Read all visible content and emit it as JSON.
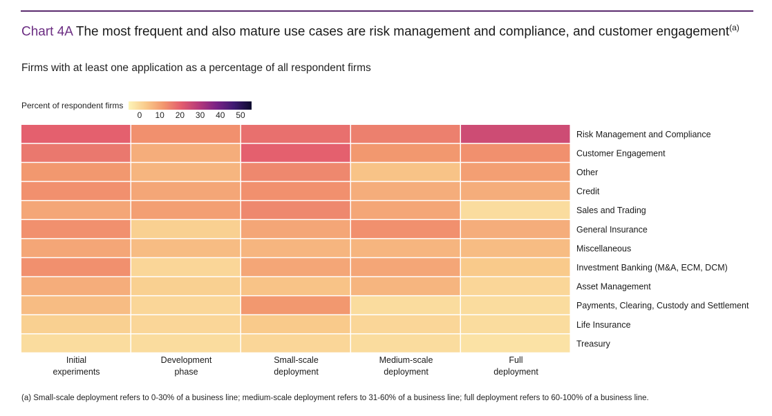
{
  "title": {
    "prefix": "Chart 4A",
    "text": "The most frequent and also mature use cases are risk management and compliance, and customer engagement",
    "note_marker": "(a)"
  },
  "subtitle": "Firms with at least one application as a percentage of all respondent firms",
  "legend": {
    "title": "Percent of respondent firms",
    "ticks": [
      0,
      10,
      20,
      30,
      40,
      50
    ],
    "min": 0,
    "max": 50,
    "colors": [
      "#fcf4b8",
      "#f9c98a",
      "#f2966e",
      "#e35d6e",
      "#b63a7a",
      "#7a2285",
      "#3e1a72",
      "#0d0a2e"
    ]
  },
  "footnote": "(a)  Small-scale deployment refers to 0-30% of a business line; medium-scale deployment refers to 31-60% of a business line; full deployment refers to 60-100% of a business line.",
  "chart_data": {
    "type": "heatmap",
    "title": "Chart 4A The most frequent and also mature use cases are risk management and compliance, and customer engagement",
    "subtitle": "Firms with at least one application as a percentage of all respondent firms",
    "colorbar_label": "Percent of respondent firms",
    "colorbar_range": [
      0,
      50
    ],
    "columns": [
      [
        "Initial",
        "experiments"
      ],
      [
        "Development",
        "phase"
      ],
      [
        "Small-scale",
        "deployment"
      ],
      [
        "Medium-scale",
        "deployment"
      ],
      [
        "Full",
        "deployment"
      ]
    ],
    "rows": [
      "Risk Management and Compliance",
      "Customer Engagement",
      "Other",
      "Credit",
      "Sales and Trading",
      "General Insurance",
      "Miscellaneous",
      "Investment Banking (M&A, ECM, DCM)",
      "Asset Management",
      "Payments, Clearing, Custody and Settlement",
      "Life Insurance",
      "Treasury"
    ],
    "values": [
      [
        21,
        15,
        19,
        17,
        25
      ],
      [
        18,
        11,
        21,
        14,
        15
      ],
      [
        14,
        10,
        16,
        8,
        13
      ],
      [
        15,
        12,
        15,
        11,
        11
      ],
      [
        12,
        13,
        16,
        12,
        4
      ],
      [
        15,
        6,
        12,
        15,
        11
      ],
      [
        12,
        9,
        10,
        10,
        9
      ],
      [
        15,
        5,
        12,
        12,
        7
      ],
      [
        11,
        6,
        8,
        10,
        5
      ],
      [
        9,
        5,
        14,
        4,
        4
      ],
      [
        6,
        5,
        7,
        5,
        4
      ],
      [
        4,
        4,
        5,
        4,
        3
      ]
    ]
  }
}
